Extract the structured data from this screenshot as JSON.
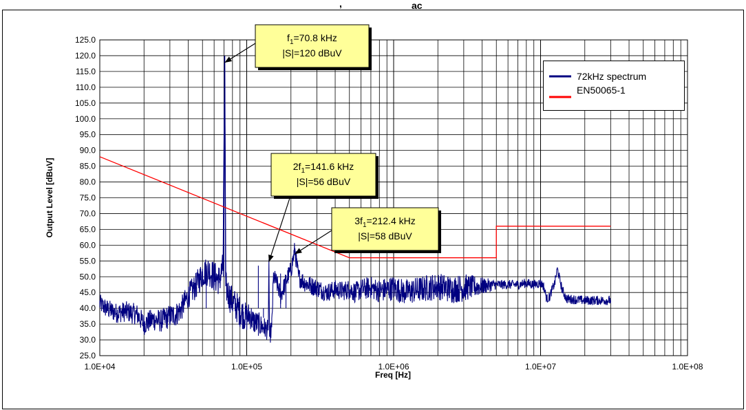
{
  "top_text": {
    "prefix": ",",
    "sub": "ac"
  },
  "chart_data": {
    "type": "line",
    "title": "",
    "xlabel": "Freq [Hz]",
    "ylabel": "Output Level [dBuV]",
    "xscale": "log",
    "xlim": [
      10000,
      100000000
    ],
    "ylim": [
      25,
      125
    ],
    "ystep": 5,
    "grid": true,
    "legend_position": "top-right",
    "x_ticks": [
      {
        "value": 10000,
        "label": "1.0E+04"
      },
      {
        "value": 100000,
        "label": "1.0E+05"
      },
      {
        "value": 1000000,
        "label": "1.0E+06"
      },
      {
        "value": 10000000,
        "label": "1.0E+07"
      },
      {
        "value": 100000000,
        "label": "1.0E+08"
      }
    ],
    "y_ticks": [
      "25.0",
      "30.0",
      "35.0",
      "40.0",
      "45.0",
      "50.0",
      "55.0",
      "60.0",
      "65.0",
      "70.0",
      "75.0",
      "80.0",
      "85.0",
      "90.0",
      "95.0",
      "100.0",
      "105.0",
      "110.0",
      "115.0",
      "120.0",
      "125.0"
    ],
    "series": [
      {
        "name": "72kHz spectrum",
        "color": "#000080",
        "x": [
          10000,
          11000,
          13000,
          15000,
          18000,
          20000,
          23000,
          26000,
          30000,
          33000,
          36000,
          40000,
          45000,
          50000,
          55000,
          60000,
          65000,
          69000,
          70800,
          72000,
          76000,
          80000,
          85000,
          90000,
          95000,
          100000,
          105000,
          110000,
          120000,
          130000,
          140000,
          141600,
          143000,
          148000,
          152000,
          160000,
          170000,
          180000,
          190000,
          200000,
          212400,
          225000,
          250000,
          280000,
          300000,
          350000,
          400000,
          450000,
          500000,
          550000,
          600000,
          700000,
          800000,
          900000,
          1000000,
          1200000,
          1500000,
          2000000,
          2500000,
          3000000,
          4000000,
          5000000,
          6000000,
          7000000,
          8000000,
          9000000,
          10000000,
          10500000,
          11000000,
          11500000,
          12000000,
          12500000,
          13000000,
          14000000,
          15000000,
          20000000,
          25000000,
          30000000
        ],
        "values": [
          41.5,
          40,
          38.5,
          39,
          38,
          35,
          36.5,
          36,
          37.5,
          38,
          40,
          44,
          47,
          51,
          52,
          50,
          49,
          53,
          120,
          47,
          44,
          42,
          40.5,
          39,
          38,
          37,
          38,
          36,
          35,
          34,
          33,
          55.5,
          31,
          34,
          50,
          48,
          44,
          47,
          50,
          52,
          58.5,
          50,
          48,
          47,
          46.5,
          45,
          46,
          45.5,
          46,
          45,
          46,
          46.5,
          45.5,
          46,
          46.5,
          45,
          46,
          47,
          46,
          46.5,
          47,
          47.5,
          47.5,
          47.5,
          48,
          47.5,
          48,
          47,
          43,
          43.5,
          46,
          48,
          52.5,
          46,
          43,
          42.5,
          42.5,
          42.5
        ],
        "noise_band": [
          [
            10000,
            3
          ],
          [
            40000,
            4
          ],
          [
            60000,
            5
          ],
          [
            90000,
            5
          ],
          [
            148000,
            3
          ],
          [
            200000,
            3
          ],
          [
            400000,
            3
          ],
          [
            1000000,
            4
          ],
          [
            3000000,
            4.5
          ],
          [
            5000000,
            1.5
          ],
          [
            10000000,
            1.5
          ],
          [
            30000000,
            1.5
          ]
        ]
      },
      {
        "name": "EN50065-1",
        "color": "#ff0000",
        "x": [
          10000,
          500000,
          500000,
          5000000,
          5000000,
          30000000
        ],
        "values": [
          88,
          56,
          56,
          56,
          66,
          66
        ]
      }
    ],
    "spikes": [
      {
        "x": 53000,
        "value": 54
      },
      {
        "x": 120000,
        "value": 53.5
      },
      {
        "x": 130000,
        "value": 37
      },
      {
        "x": 170000,
        "value": 51
      },
      {
        "x": 185000,
        "value": 50.5
      }
    ],
    "annotations": [
      {
        "lines": [
          "f<sub>1</sub>=70.8 kHz",
          "|S|=120 dBuV"
        ],
        "text1_main": "f",
        "text1_sub": "1",
        "text1_rest": "=70.8 kHz",
        "text2": "|S|=120 dBuV",
        "target_x": 70800,
        "target_y": 120
      },
      {
        "text1_main": "2f",
        "text1_sub": "1",
        "text1_rest": "=141.6 kHz",
        "text2": "|S|=56 dBuV",
        "target_x": 141600,
        "target_y": 56
      },
      {
        "text1_main": "3f",
        "text1_sub": "1",
        "text1_rest": "=212.4 kHz",
        "text2": "|S|=58 dBuV",
        "target_x": 212400,
        "target_y": 58.5
      }
    ]
  }
}
